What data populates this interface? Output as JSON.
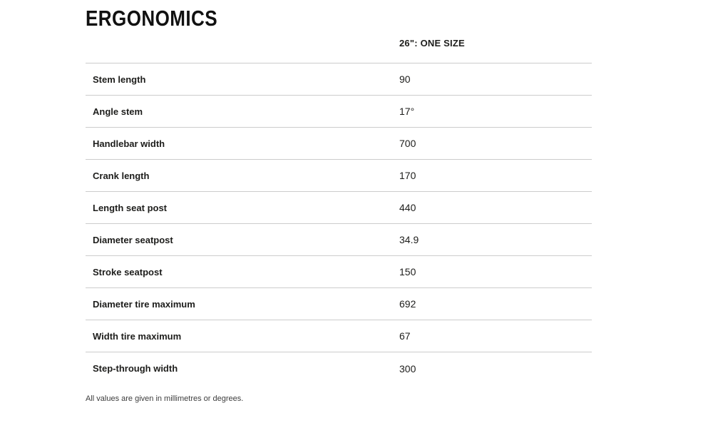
{
  "page": {
    "title": "ERGONOMICS",
    "footnote": "All values are given in millimetres or degrees."
  },
  "table": {
    "value_column_header": "26\": ONE SIZE",
    "rows": [
      {
        "label": "Stem length",
        "value": "90"
      },
      {
        "label": "Angle stem",
        "value": "17°"
      },
      {
        "label": "Handlebar width",
        "value": "700"
      },
      {
        "label": "Crank length",
        "value": "170"
      },
      {
        "label": "Length seat post",
        "value": "440"
      },
      {
        "label": "Diameter seatpost",
        "value": "34.9"
      },
      {
        "label": "Stroke seatpost",
        "value": "150"
      },
      {
        "label": "Diameter tire maximum",
        "value": "692"
      },
      {
        "label": "Width tire maximum",
        "value": "67"
      },
      {
        "label": "Step-through width",
        "value": "300"
      }
    ]
  },
  "colors": {
    "text": "#1d1d1b",
    "divider": "#cccccc",
    "background": "#ffffff",
    "footnote": "#3c3c3c"
  }
}
